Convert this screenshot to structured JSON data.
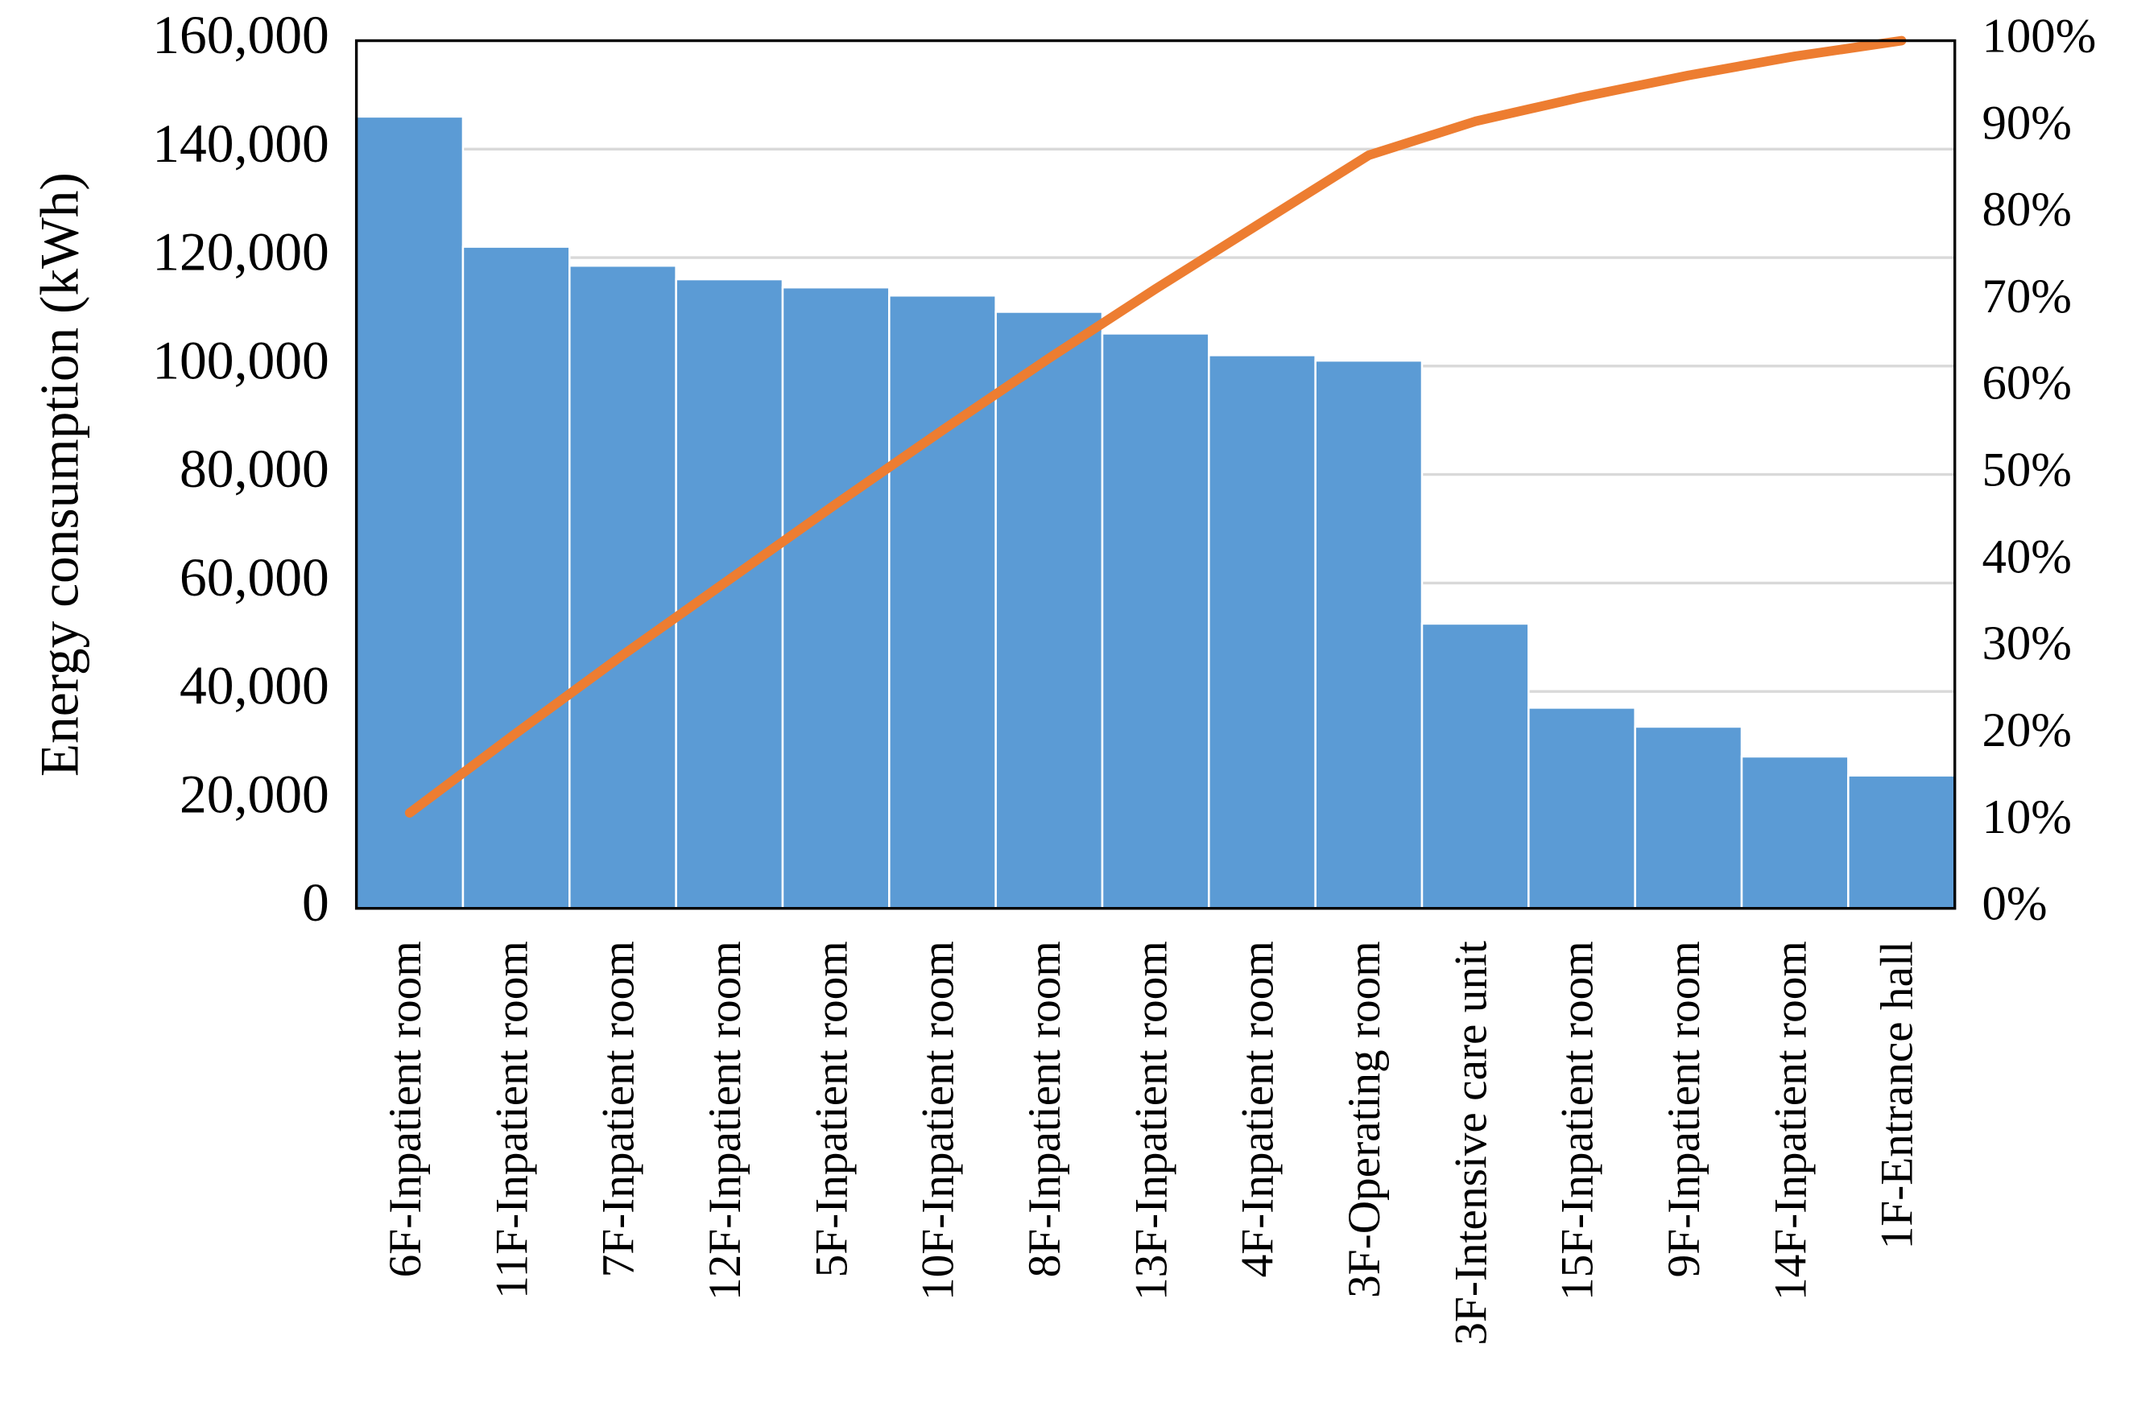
{
  "chart_data": {
    "type": "pareto",
    "y_axis_label": "Energy consumption (kWh)",
    "categories": [
      "6F-Inpatient room",
      "11F-Inpatient room",
      "7F-Inpatient room",
      "12F-Inpatient room",
      "5F-Inpatient room",
      "10F-Inpatient room",
      "8F-Inpatient room",
      "13F-Inpatient room",
      "4F-Inpatient room",
      "3F-Operating room",
      "3F-Intensive care unit",
      "15F-Inpatient room",
      "9F-Inpatient room",
      "14F-Inpatient room",
      "1F-Entrance hall"
    ],
    "series": [
      {
        "type": "bar",
        "color": "#5b9bd5",
        "values": [
          146000,
          122000,
          118500,
          116000,
          114500,
          113000,
          110000,
          106000,
          102000,
          101000,
          52500,
          37000,
          33500,
          28000,
          24500
        ]
      },
      {
        "type": "line",
        "axis": "y2",
        "color": "#ed7d31",
        "values": [
          11.0,
          20.2,
          29.2,
          37.9,
          46.6,
          55.1,
          63.4,
          71.4,
          79.1,
          86.8,
          90.7,
          93.5,
          96.0,
          98.2,
          100
        ]
      }
    ],
    "ylim": [
      0,
      160000
    ],
    "yticks": [
      0,
      {
        "value": 20000,
        "label": "20,000"
      },
      {
        "value": 40000,
        "label": "40,000"
      },
      {
        "value": 60000,
        "label": "60,000"
      },
      {
        "value": 80000,
        "label": "80,000"
      },
      {
        "value": 100000,
        "label": "100,000"
      },
      {
        "value": 120000,
        "label": "120,000"
      },
      {
        "value": 140000,
        "label": "140,000"
      },
      {
        "value": 160000,
        "label": "160,000"
      }
    ],
    "y2lim": [
      0,
      100
    ],
    "y2ticks": [
      {
        "value": 0,
        "label": "0%"
      },
      {
        "value": 10,
        "label": "10%"
      },
      {
        "value": 20,
        "label": "20%"
      },
      {
        "value": 30,
        "label": "30%"
      },
      {
        "value": 40,
        "label": "40%"
      },
      {
        "value": 50,
        "label": "50%"
      },
      {
        "value": 60,
        "label": "60%"
      },
      {
        "value": 70,
        "label": "70%"
      },
      {
        "value": 80,
        "label": "80%"
      },
      {
        "value": 90,
        "label": "90%"
      },
      {
        "value": 100,
        "label": "100%"
      }
    ],
    "grid": true
  }
}
